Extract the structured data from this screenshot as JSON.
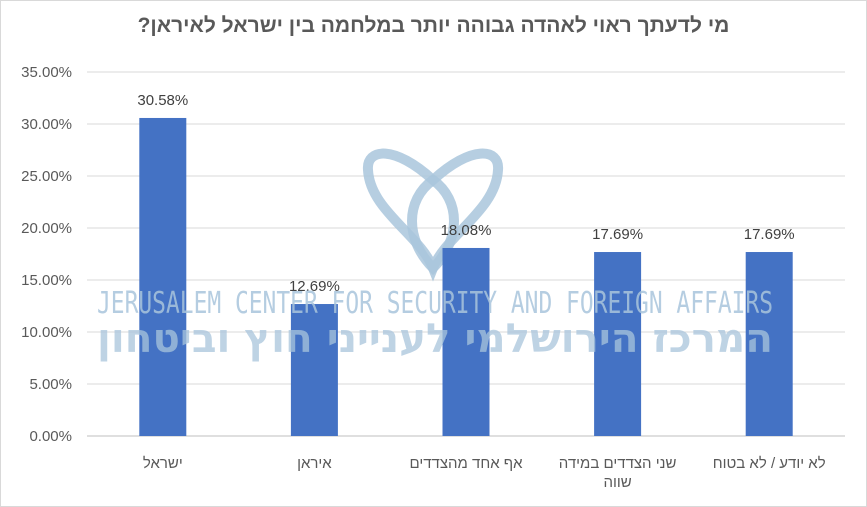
{
  "chart_data": {
    "type": "bar",
    "title": "מי לדעתך ראוי לאהדה גבוהה יותר במלחמה בין ישראל לאיראן?",
    "categories": [
      "ישראל",
      "איראן",
      "אף אחד מהצדדים",
      "שני הצדדים במידה שווה",
      "לא יודע / לא בטוח"
    ],
    "category_lines": [
      [
        "ישראל"
      ],
      [
        "איראן"
      ],
      [
        "אף אחד מהצדדים"
      ],
      [
        "שני הצדדים במידה",
        "שווה"
      ],
      [
        "לא יודע / לא בטוח"
      ]
    ],
    "values": [
      30.58,
      12.69,
      18.08,
      17.69,
      17.69
    ],
    "data_labels": [
      "30.58%",
      "12.69%",
      "18.08%",
      "17.69%",
      "17.69%"
    ],
    "ylim": [
      0,
      35
    ],
    "yticks": [
      "0.00%",
      "5.00%",
      "10.00%",
      "15.00%",
      "20.00%",
      "25.00%",
      "30.00%",
      "35.00%"
    ],
    "grid": true,
    "xlabel": "",
    "ylabel": "",
    "bar_color": "#4472c4"
  },
  "watermark": {
    "english": "JERUSALEM CENTER FOR SECURITY AND FOREIGN AFFAIRS",
    "hebrew": "המרכז הירושלמי לענייני חוץ וביטחון",
    "color": "#a9c5dc"
  }
}
